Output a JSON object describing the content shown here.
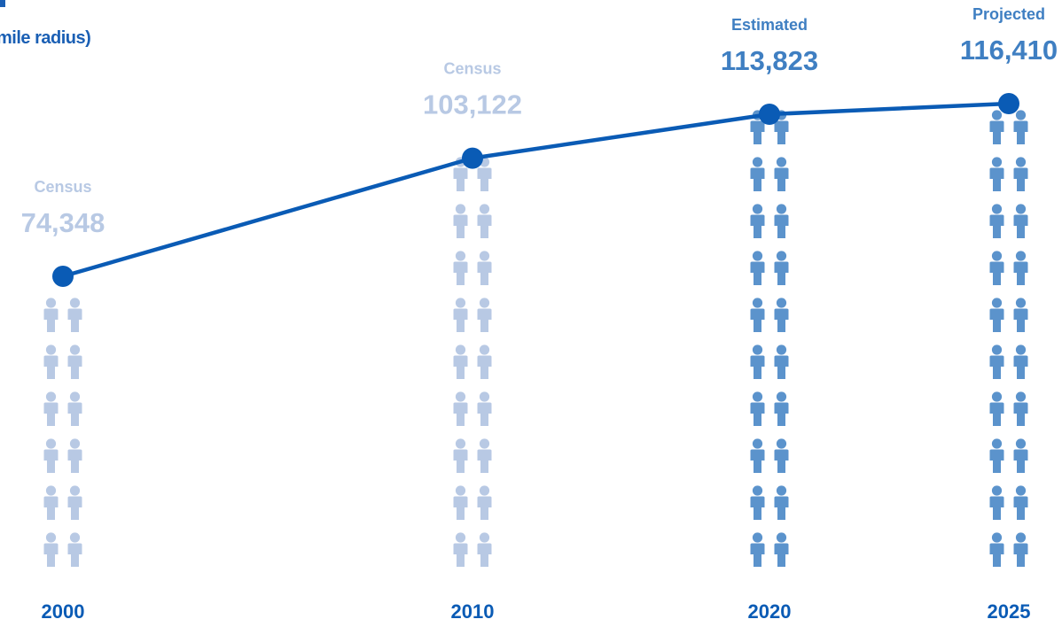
{
  "header": {
    "subtitle": "mile radius)"
  },
  "colors": {
    "line": "#0a5bb5",
    "census_people": "#b8c9e4",
    "census_label": "#b8c9e4",
    "estimate_people": "#5b93cc",
    "estimate_label": "#3f7fc2",
    "year_label": "#0a5bb5",
    "marker": "#0a5bb5"
  },
  "chart_data": {
    "type": "line",
    "title": "",
    "xlabel": "",
    "ylabel": "",
    "x": [
      2000,
      2010,
      2020,
      2025
    ],
    "values": [
      74348,
      103122,
      113823,
      116410
    ],
    "value_labels": [
      "74,348",
      "103,122",
      "113,823",
      "116,410"
    ],
    "category_labels": [
      "2000",
      "2010",
      "2020",
      "2025"
    ],
    "status_labels": [
      "Census",
      "Census",
      "Estimated",
      "Projected"
    ],
    "status_kind": [
      "census",
      "census",
      "estimate",
      "estimate"
    ]
  }
}
